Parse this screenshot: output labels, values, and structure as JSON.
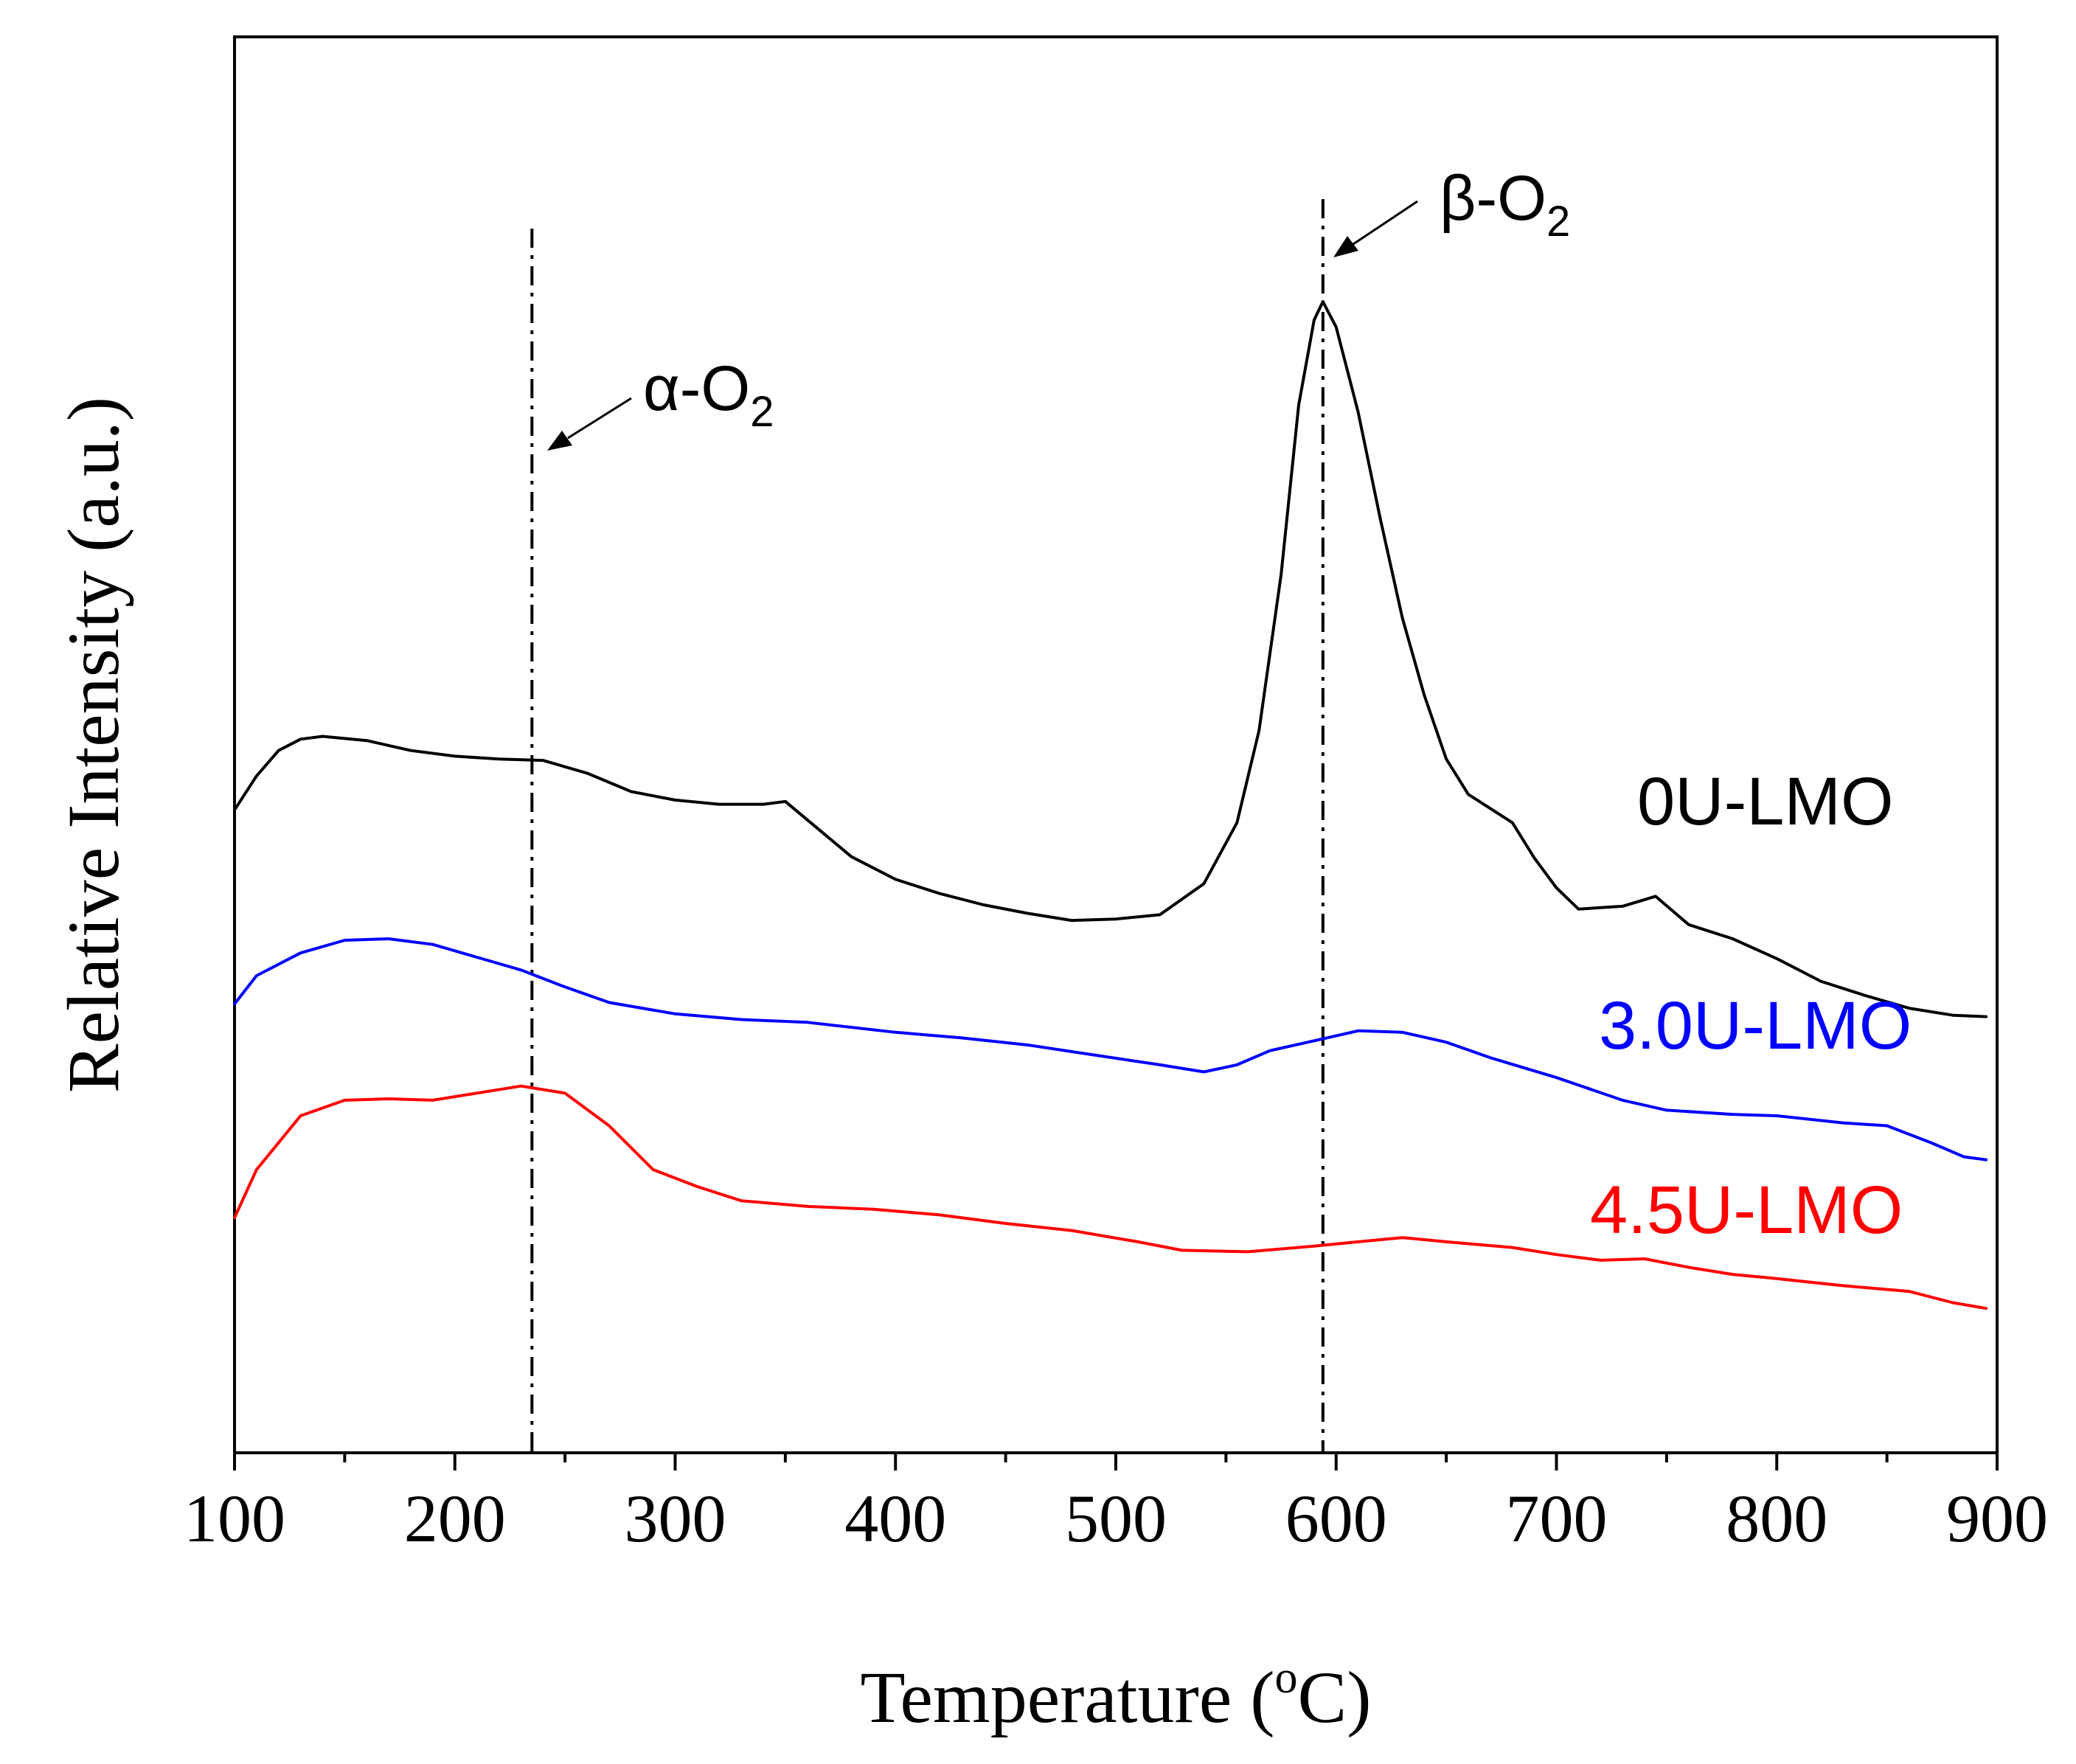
{
  "chart_data": {
    "type": "line",
    "title": "",
    "xlabel": "Temperature (",
    "xlabel_sup": "o",
    "xlabel_unit": "C)",
    "ylabel": "Relative Intensity (a.u.)",
    "xlim": [
      100,
      900
    ],
    "ylim": [
      0,
      100
    ],
    "xticks": [
      100,
      200,
      300,
      400,
      500,
      600,
      700,
      800,
      900
    ],
    "xtick_labels": [
      "100",
      "200",
      "300",
      "400",
      "500",
      "600",
      "700",
      "800",
      "900"
    ],
    "y_ticks_shown": false,
    "grid": false,
    "series": [
      {
        "name": "0U-LMO",
        "color": "#000000",
        "points": [
          [
            100,
            45.4
          ],
          [
            110,
            47.8
          ],
          [
            120,
            49.6
          ],
          [
            130,
            50.4
          ],
          [
            140,
            50.6
          ],
          [
            160,
            50.3
          ],
          [
            180,
            49.6
          ],
          [
            200,
            49.2
          ],
          [
            220,
            49.0
          ],
          [
            240,
            48.9
          ],
          [
            260,
            48.0
          ],
          [
            280,
            46.7
          ],
          [
            300,
            46.1
          ],
          [
            320,
            45.8
          ],
          [
            340,
            45.8
          ],
          [
            350,
            46.0
          ],
          [
            360,
            44.7
          ],
          [
            380,
            42.1
          ],
          [
            400,
            40.5
          ],
          [
            420,
            39.5
          ],
          [
            440,
            38.7
          ],
          [
            460,
            38.1
          ],
          [
            480,
            37.6
          ],
          [
            500,
            37.7
          ],
          [
            520,
            38.0
          ],
          [
            540,
            40.2
          ],
          [
            555,
            44.5
          ],
          [
            565,
            51.0
          ],
          [
            575,
            62.0
          ],
          [
            583,
            74.0
          ],
          [
            590,
            80.0
          ],
          [
            594,
            81.3
          ],
          [
            600,
            79.5
          ],
          [
            610,
            73.5
          ],
          [
            620,
            66.0
          ],
          [
            630,
            59.0
          ],
          [
            640,
            53.5
          ],
          [
            650,
            49.0
          ],
          [
            660,
            46.5
          ],
          [
            680,
            44.5
          ],
          [
            690,
            42.0
          ],
          [
            700,
            39.9
          ],
          [
            710,
            38.4
          ],
          [
            730,
            38.6
          ],
          [
            745,
            39.3
          ],
          [
            760,
            37.3
          ],
          [
            780,
            36.3
          ],
          [
            800,
            34.9
          ],
          [
            820,
            33.3
          ],
          [
            840,
            32.3
          ],
          [
            860,
            31.4
          ],
          [
            880,
            30.9
          ],
          [
            895,
            30.8
          ]
        ]
      },
      {
        "name": "3.0U-LMO",
        "color": "#0000ff",
        "points": [
          [
            100,
            31.7
          ],
          [
            110,
            33.7
          ],
          [
            130,
            35.3
          ],
          [
            150,
            36.2
          ],
          [
            170,
            36.3
          ],
          [
            190,
            35.9
          ],
          [
            210,
            35.0
          ],
          [
            230,
            34.1
          ],
          [
            250,
            32.9
          ],
          [
            270,
            31.8
          ],
          [
            300,
            31.0
          ],
          [
            330,
            30.6
          ],
          [
            360,
            30.4
          ],
          [
            400,
            29.7
          ],
          [
            430,
            29.3
          ],
          [
            460,
            28.8
          ],
          [
            490,
            28.1
          ],
          [
            520,
            27.4
          ],
          [
            540,
            26.9
          ],
          [
            555,
            27.4
          ],
          [
            570,
            28.4
          ],
          [
            590,
            29.1
          ],
          [
            610,
            29.8
          ],
          [
            630,
            29.7
          ],
          [
            650,
            29.0
          ],
          [
            670,
            27.9
          ],
          [
            700,
            26.5
          ],
          [
            730,
            24.9
          ],
          [
            750,
            24.2
          ],
          [
            780,
            23.9
          ],
          [
            800,
            23.8
          ],
          [
            830,
            23.3
          ],
          [
            850,
            23.1
          ],
          [
            870,
            21.9
          ],
          [
            885,
            20.9
          ],
          [
            895,
            20.7
          ]
        ]
      },
      {
        "name": "4.5U-LMO",
        "color": "#ff0000",
        "points": [
          [
            100,
            16.6
          ],
          [
            110,
            20.0
          ],
          [
            130,
            23.8
          ],
          [
            150,
            24.9
          ],
          [
            170,
            25.0
          ],
          [
            190,
            24.9
          ],
          [
            210,
            25.4
          ],
          [
            230,
            25.9
          ],
          [
            250,
            25.4
          ],
          [
            270,
            23.1
          ],
          [
            290,
            20.0
          ],
          [
            310,
            18.8
          ],
          [
            330,
            17.8
          ],
          [
            360,
            17.4
          ],
          [
            390,
            17.2
          ],
          [
            420,
            16.8
          ],
          [
            450,
            16.2
          ],
          [
            480,
            15.7
          ],
          [
            510,
            14.9
          ],
          [
            530,
            14.3
          ],
          [
            560,
            14.2
          ],
          [
            590,
            14.6
          ],
          [
            610,
            14.9
          ],
          [
            630,
            15.2
          ],
          [
            650,
            14.9
          ],
          [
            680,
            14.5
          ],
          [
            700,
            14.0
          ],
          [
            720,
            13.6
          ],
          [
            740,
            13.7
          ],
          [
            760,
            13.1
          ],
          [
            780,
            12.6
          ],
          [
            800,
            12.3
          ],
          [
            830,
            11.8
          ],
          [
            860,
            11.4
          ],
          [
            880,
            10.6
          ],
          [
            895,
            10.2
          ]
        ]
      }
    ],
    "reference_lines": [
      {
        "x": 235,
        "label": "α-O",
        "sub": "2"
      },
      {
        "x": 594,
        "label": "β-O",
        "sub": "2"
      }
    ]
  }
}
